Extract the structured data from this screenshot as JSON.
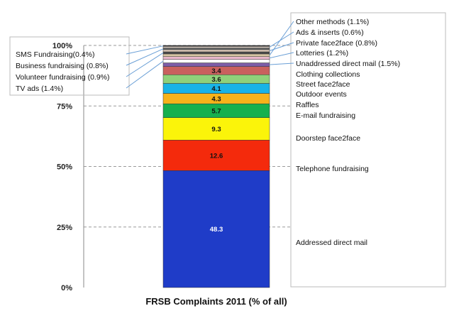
{
  "chart_data": {
    "type": "bar",
    "stacked": true,
    "xlabel": "FRSB Complaints 2011 (% of all)",
    "ylim": [
      0,
      100
    ],
    "y_ticks": [
      "0%",
      "25%",
      "50%",
      "75%",
      "100%"
    ],
    "grid": "dashed horizontal",
    "series": [
      {
        "name": "Addressed direct mail",
        "value": 48.3,
        "data_label": "48.3",
        "color": "#1f3cc8",
        "text_color": "#ffffff"
      },
      {
        "name": "Telephone fundraising",
        "value": 12.6,
        "data_label": "12.6",
        "color": "#f42a0c",
        "text_color": "#111111"
      },
      {
        "name": "Doorstep face2face",
        "value": 9.3,
        "data_label": "9.3",
        "color": "#fbf40a",
        "text_color": "#111111"
      },
      {
        "name": "E-mail fundraising",
        "value": 5.7,
        "data_label": "5.7",
        "color": "#16b04e",
        "text_color": "#111111"
      },
      {
        "name": "Raffles",
        "value": 4.3,
        "data_label": "4.3",
        "color": "#f7b21a",
        "text_color": "#111111"
      },
      {
        "name": "Outdoor events",
        "value": 4.1,
        "data_label": "4.1",
        "color": "#19b3e6",
        "text_color": "#111111"
      },
      {
        "name": "Street face2face",
        "value": 3.6,
        "data_label": "3.6",
        "color": "#8fd17a",
        "text_color": "#111111"
      },
      {
        "name": "Clothing collections",
        "value": 3.4,
        "data_label": "3.4",
        "color": "#c9605e",
        "text_color": "#111111"
      },
      {
        "name": "Unaddressed direct mail (1.5%)",
        "value": 1.5,
        "data_label": "",
        "color": "#7d5da8",
        "text_color": "#111111"
      },
      {
        "name": "TV ads (1.4%)",
        "value": 1.4,
        "data_label": "",
        "color": "#ffffff",
        "text_color": "#111111"
      },
      {
        "name": "Lotteries (1.2%)",
        "value": 1.2,
        "data_label": "",
        "color": "#e9b8cc",
        "text_color": "#111111"
      },
      {
        "name": "Other  methods (1.1%)",
        "value": 1.1,
        "data_label": "",
        "color": "#d8c6a4",
        "text_color": "#111111"
      },
      {
        "name": "Volunteer fundraising (0.9%)",
        "value": 0.9,
        "data_label": "",
        "color": "#4a4a4a",
        "text_color": "#111111"
      },
      {
        "name": "Private face2face (0.8%)",
        "value": 0.8,
        "data_label": "",
        "color": "#f2dcc8",
        "text_color": "#111111"
      },
      {
        "name": "Business fundraising (0.8%)",
        "value": 0.8,
        "data_label": "",
        "color": "#6b6b6b",
        "text_color": "#111111"
      },
      {
        "name": "Ads & inserts  (0.6%)",
        "value": 0.6,
        "data_label": "",
        "color": "#efe2d6",
        "text_color": "#111111"
      },
      {
        "name": "SMS Fundraising(0.4%)",
        "value": 0.4,
        "data_label": "",
        "color": "#2a2a2a",
        "text_color": "#111111"
      }
    ],
    "right_labels": [
      {
        "text": "Addressed direct mail",
        "series": 0
      },
      {
        "text": "Telephone fundraising",
        "series": 1
      },
      {
        "text": "Doorstep face2face",
        "series": 2
      },
      {
        "text": "E-mail fundraising",
        "series": 3
      },
      {
        "text": "Raffles",
        "series": 4
      },
      {
        "text": "Outdoor events",
        "series": 5
      },
      {
        "text": "Street face2face",
        "series": 6
      },
      {
        "text": "Clothing collections",
        "series": 7
      },
      {
        "text": "Unaddressed direct mail (1.5%)",
        "series": 8
      },
      {
        "text": "Lotteries (1.2%)",
        "series": 10
      },
      {
        "text": "Private face2face (0.8%)",
        "series": 13
      },
      {
        "text": "Ads & inserts  (0.6%)",
        "series": 15
      },
      {
        "text": "Other  methods (1.1%)",
        "series": 11
      }
    ],
    "left_labels": [
      {
        "text": "SMS Fundraising(0.4%)",
        "series": 16
      },
      {
        "text": "Business fundraising (0.8%)",
        "series": 14
      },
      {
        "text": "Volunteer fundraising (0.9%)",
        "series": 12
      },
      {
        "text": "TV ads (1.4%)",
        "series": 9
      }
    ]
  }
}
